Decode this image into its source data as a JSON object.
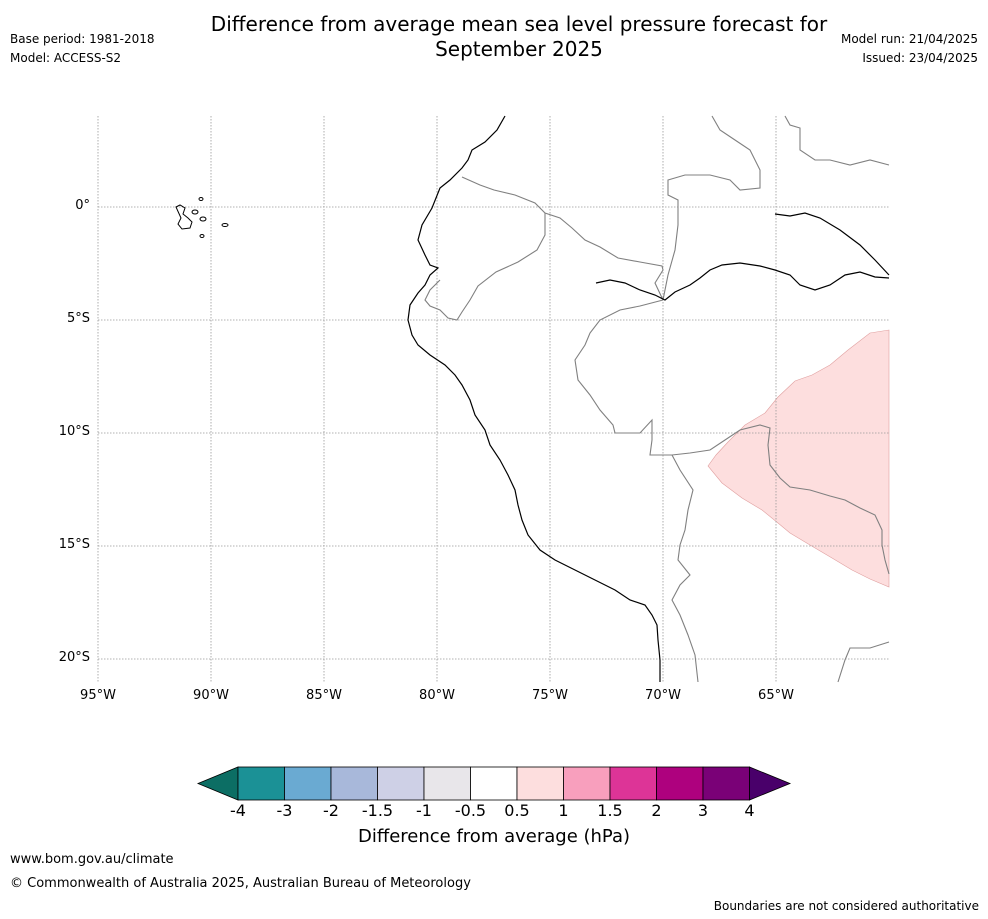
{
  "title_line1": "Difference from average mean sea level pressure forecast for",
  "title_line2": "September 2025",
  "base_period": "Base period: 1981-2018",
  "model": "Model: ACCESS-S2",
  "model_run": "Model run: 21/04/2025",
  "issued": "Issued: 23/04/2025",
  "map": {
    "lon_range": [
      -95,
      -60
    ],
    "lat_range": [
      -21,
      4
    ],
    "lat_labels": [
      "0°",
      "5°S",
      "10°S",
      "15°S",
      "20°S"
    ],
    "lon_labels": [
      "95°W",
      "90°W",
      "85°W",
      "80°W",
      "75°W",
      "70°W",
      "65°W"
    ],
    "anomaly_region": {
      "category": "0.5 to 1 hPa",
      "color": "#fddede"
    }
  },
  "colorbar": {
    "title": "Difference from average (hPa)",
    "ticks": [
      "-4",
      "-3",
      "-2",
      "-1.5",
      "-1",
      "-0.5",
      "0.5",
      "1",
      "1.5",
      "2",
      "3",
      "4"
    ],
    "colors": [
      "#0c6e64",
      "#1b9196",
      "#6aaad2",
      "#a8b8da",
      "#ced0e6",
      "#e8e6ea",
      "#ffffff",
      "#fddede",
      "#f89fbd",
      "#dd3497",
      "#ae017e",
      "#7a0177",
      "#49006a"
    ]
  },
  "footer": {
    "url": "www.bom.gov.au/climate",
    "copyright": "© Commonwealth of Australia 2025, Australian Bureau of Meteorology",
    "disclaimer": "Boundaries are not considered authoritative"
  }
}
